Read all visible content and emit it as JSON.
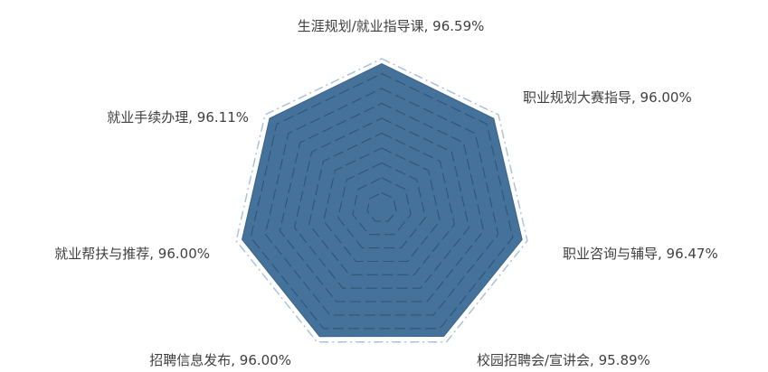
{
  "chart_data": {
    "type": "radar",
    "title": "",
    "categories": [
      "生涯规划/就业指导课",
      "职业规划大赛指导",
      "职业咨询与辅导",
      "校园招聘会/宣讲会",
      "招聘信息发布",
      "就业帮扶与推荐",
      "就业手续办理"
    ],
    "values": [
      96.59,
      96.0,
      96.47,
      95.89,
      96.0,
      96.0,
      96.11
    ],
    "labels": [
      "生涯规划/就业指导课, 96.59%",
      "职业规划大赛指导, 96.00%",
      "职业咨询与辅导, 96.47%",
      "校园招聘会/宣讲会, 95.89%",
      "招聘信息发布, 96.00%",
      "就业帮扶与推荐, 96.00%",
      "就业手续办理, 96.11%"
    ],
    "unit": "%",
    "radial_max": 100,
    "grid": true,
    "fill_color": "#44729A",
    "grid_color": "#2F5577",
    "outer_grid_color": "#A9C3DC",
    "label_color": "#404040"
  }
}
